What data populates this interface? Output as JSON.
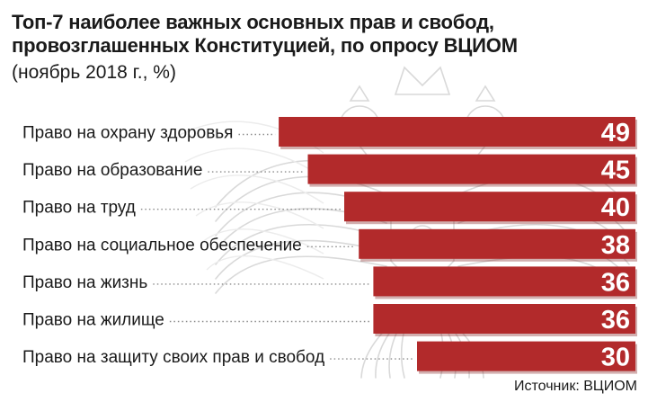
{
  "title_lines": [
    "Топ-7 наиболее важных основных прав и свобод,",
    "провозглашенных Конституцией, по опросу ВЦИОМ"
  ],
  "subtitle": "(ноябрь 2018 г., %)",
  "source": "Источник: ВЦИОМ",
  "colors": {
    "bar": "#b22a2b",
    "bar_shadow": "#7d1a1b",
    "leader": "#8a8a8a",
    "emblem": "#d9d9d9"
  },
  "chart_data": {
    "type": "bar",
    "orientation": "horizontal",
    "title": "Топ-7 наиболее важных основных прав и свобод, провозглашенных Конституцией, по опросу ВЦИОМ",
    "subtitle": "(ноябрь 2018 г., %)",
    "categories": [
      "Право на охрану здоровья",
      "Право на образование",
      "Право на труд",
      "Право на социальное обеспечение",
      "Право на жизнь",
      "Право на жилище",
      "Право на защиту своих прав и свобод"
    ],
    "values": [
      49,
      45,
      40,
      38,
      36,
      36,
      30
    ],
    "value_labels": [
      "49",
      "45",
      "40",
      "38",
      "36",
      "36",
      "30"
    ],
    "unit": "%",
    "grid": false,
    "legend": "none"
  }
}
